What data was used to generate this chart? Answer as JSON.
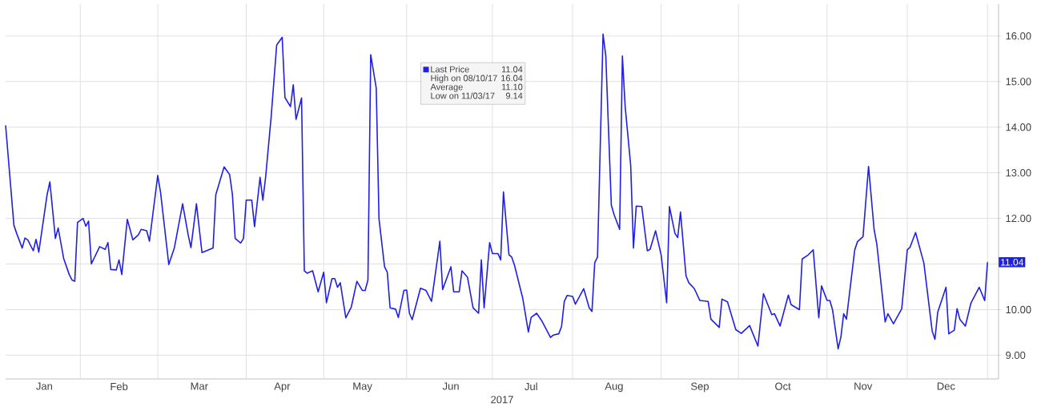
{
  "chart_data": {
    "type": "line",
    "xlabel": "2017",
    "series": [
      {
        "name": "Last Price",
        "color": "#1f1fe6",
        "x": [
          "2017-01-06",
          "2017-01-09",
          "2017-01-10",
          "2017-01-12",
          "2017-01-13",
          "2017-01-14",
          "2017-01-16",
          "2017-01-17",
          "2017-01-18",
          "2017-01-21",
          "2017-01-22",
          "2017-01-24",
          "2017-01-25",
          "2017-01-27",
          "2017-01-29",
          "2017-01-30",
          "2017-01-31",
          "2017-02-01",
          "2017-02-03",
          "2017-02-04",
          "2017-02-05",
          "2017-02-06",
          "2017-02-09",
          "2017-02-11",
          "2017-02-12",
          "2017-02-13",
          "2017-02-15",
          "2017-02-16",
          "2017-02-17",
          "2017-02-19",
          "2017-02-21",
          "2017-02-23",
          "2017-02-24",
          "2017-02-26",
          "2017-02-27",
          "2017-03-02",
          "2017-03-03",
          "2017-03-06",
          "2017-03-08",
          "2017-03-11",
          "2017-03-13",
          "2017-03-14",
          "2017-03-16",
          "2017-03-18",
          "2017-03-22",
          "2017-03-23",
          "2017-03-26",
          "2017-03-28",
          "2017-03-29",
          "2017-03-30",
          "2017-04-01",
          "2017-04-02",
          "2017-04-03",
          "2017-04-05",
          "2017-04-06",
          "2017-04-08",
          "2017-04-09",
          "2017-04-10",
          "2017-04-12",
          "2017-04-14",
          "2017-04-16",
          "2017-04-17",
          "2017-04-19",
          "2017-04-20",
          "2017-04-21",
          "2017-04-23",
          "2017-04-24",
          "2017-04-25",
          "2017-04-27",
          "2017-04-29",
          "2017-05-01",
          "2017-05-02",
          "2017-05-04",
          "2017-05-05",
          "2017-05-06",
          "2017-05-07",
          "2017-05-09",
          "2017-05-11",
          "2017-05-13",
          "2017-05-15",
          "2017-05-16",
          "2017-05-17",
          "2017-05-18",
          "2017-05-20",
          "2017-05-21",
          "2017-05-23",
          "2017-05-24",
          "2017-05-25",
          "2017-05-27",
          "2017-05-28",
          "2017-05-30",
          "2017-05-31",
          "2017-06-01",
          "2017-06-02",
          "2017-06-05",
          "2017-06-07",
          "2017-06-09",
          "2017-06-12",
          "2017-06-13",
          "2017-06-16",
          "2017-06-17",
          "2017-06-19",
          "2017-06-20",
          "2017-06-22",
          "2017-06-24",
          "2017-06-26",
          "2017-06-27",
          "2017-06-28",
          "2017-06-30",
          "2017-07-01",
          "2017-07-03",
          "2017-07-04",
          "2017-07-05",
          "2017-07-07",
          "2017-07-08",
          "2017-07-09",
          "2017-07-12",
          "2017-07-14",
          "2017-07-15",
          "2017-07-17",
          "2017-07-19",
          "2017-07-22",
          "2017-07-23",
          "2017-07-25",
          "2017-07-26",
          "2017-07-27",
          "2017-07-28",
          "2017-07-30",
          "2017-07-31",
          "2017-08-03",
          "2017-08-05",
          "2017-08-06",
          "2017-08-07",
          "2017-08-08",
          "2017-08-10",
          "2017-08-11",
          "2017-08-13",
          "2017-08-14",
          "2017-08-16",
          "2017-08-17",
          "2017-08-18",
          "2017-08-20",
          "2017-08-21",
          "2017-08-22",
          "2017-08-24",
          "2017-08-26",
          "2017-08-27",
          "2017-08-29",
          "2017-08-31",
          "2017-09-02",
          "2017-09-03",
          "2017-09-05",
          "2017-09-06",
          "2017-09-07",
          "2017-09-09",
          "2017-09-10",
          "2017-09-12",
          "2017-09-14",
          "2017-09-17",
          "2017-09-18",
          "2017-09-21",
          "2017-09-22",
          "2017-09-24",
          "2017-09-27",
          "2017-09-29",
          "2017-10-02",
          "2017-10-05",
          "2017-10-07",
          "2017-10-10",
          "2017-10-11",
          "2017-10-13",
          "2017-10-16",
          "2017-10-17",
          "2017-10-20",
          "2017-10-21",
          "2017-10-23",
          "2017-10-25",
          "2017-10-27",
          "2017-10-28",
          "2017-10-30",
          "2017-10-31",
          "2017-11-01",
          "2017-11-03",
          "2017-11-04",
          "2017-11-05",
          "2017-11-06",
          "2017-11-09",
          "2017-11-10",
          "2017-11-12",
          "2017-11-14",
          "2017-11-16",
          "2017-11-17",
          "2017-11-20",
          "2017-11-21",
          "2017-11-23",
          "2017-11-26",
          "2017-11-28",
          "2017-11-29",
          "2017-12-01",
          "2017-12-04",
          "2017-12-07",
          "2017-12-08",
          "2017-12-09",
          "2017-12-12",
          "2017-12-13",
          "2017-12-15",
          "2017-12-16",
          "2017-12-17",
          "2017-12-19",
          "2017-12-21",
          "2017-12-24",
          "2017-12-26",
          "2017-12-27"
        ],
        "values": [
          14.04,
          11.85,
          11.67,
          11.35,
          11.57,
          11.53,
          11.29,
          11.54,
          11.26,
          12.52,
          12.8,
          11.56,
          11.79,
          11.12,
          10.77,
          10.65,
          10.62,
          11.91,
          12.0,
          11.83,
          11.94,
          11.0,
          11.38,
          11.32,
          11.47,
          10.88,
          10.87,
          11.09,
          10.77,
          11.98,
          11.53,
          11.64,
          11.76,
          11.73,
          11.5,
          12.94,
          12.58,
          10.99,
          11.35,
          12.32,
          11.64,
          11.36,
          12.32,
          11.25,
          11.35,
          12.52,
          13.13,
          12.96,
          12.52,
          11.56,
          11.46,
          11.56,
          12.4,
          12.4,
          11.82,
          12.9,
          12.4,
          12.9,
          14.22,
          15.8,
          15.97,
          14.65,
          14.45,
          14.93,
          14.17,
          14.64,
          10.85,
          10.8,
          10.85,
          10.39,
          10.82,
          10.15,
          10.68,
          10.68,
          10.49,
          10.59,
          9.82,
          10.06,
          10.62,
          10.42,
          10.42,
          10.65,
          15.59,
          14.86,
          11.99,
          10.94,
          10.82,
          10.04,
          10.01,
          9.83,
          10.42,
          10.43,
          9.92,
          9.78,
          10.47,
          10.42,
          10.18,
          11.5,
          10.44,
          10.94,
          10.39,
          10.39,
          10.85,
          10.71,
          10.04,
          9.92,
          11.09,
          10.04,
          11.47,
          11.23,
          11.23,
          11.09,
          12.58,
          11.2,
          11.15,
          10.97,
          10.24,
          9.51,
          9.83,
          9.92,
          9.74,
          9.39,
          9.44,
          9.47,
          9.63,
          10.18,
          10.31,
          10.29,
          10.12,
          10.46,
          10.04,
          9.96,
          11.03,
          11.15,
          16.04,
          15.56,
          12.29,
          12.08,
          11.76,
          15.56,
          14.45,
          13.16,
          11.35,
          12.27,
          12.26,
          11.29,
          11.32,
          11.73,
          11.2,
          10.15,
          12.26,
          11.67,
          11.58,
          12.14,
          10.74,
          10.59,
          10.46,
          10.2,
          10.18,
          9.79,
          9.61,
          10.23,
          10.17,
          9.56,
          9.48,
          9.65,
          9.2,
          10.35,
          9.89,
          9.91,
          9.64,
          10.32,
          10.11,
          10.0,
          11.11,
          11.19,
          11.31,
          9.82,
          10.52,
          10.2,
          10.2,
          9.99,
          9.14,
          9.4,
          9.91,
          9.79,
          11.31,
          11.49,
          11.6,
          13.14,
          11.76,
          11.43,
          9.73,
          9.91,
          9.69,
          10.02,
          11.31,
          11.37,
          11.69,
          11.02,
          9.53,
          9.35,
          9.94,
          10.49,
          9.47,
          9.55,
          10.02,
          9.79,
          9.64,
          10.14,
          10.49,
          10.2,
          11.04
        ]
      }
    ],
    "xlim": [
      "2017-01-06",
      "2017-12-31"
    ],
    "xticks": [
      {
        "value": "2017-01-20",
        "label": "Jan"
      },
      {
        "value": "2017-02-16",
        "label": "Feb"
      },
      {
        "value": "2017-03-17",
        "label": "Mar"
      },
      {
        "value": "2017-04-16",
        "label": "Apr"
      },
      {
        "value": "2017-05-15",
        "label": "May"
      },
      {
        "value": "2017-06-16",
        "label": "Jun"
      },
      {
        "value": "2017-07-15",
        "label": "Jul"
      },
      {
        "value": "2017-08-14",
        "label": "Aug"
      },
      {
        "value": "2017-09-14",
        "label": "Sep"
      },
      {
        "value": "2017-10-14",
        "label": "Oct"
      },
      {
        "value": "2017-11-12",
        "label": "Nov"
      },
      {
        "value": "2017-12-12",
        "label": "Dec"
      },
      {
        "value": "2017-02-02",
        "label": null
      },
      {
        "value": "2017-03-02",
        "label": null
      },
      {
        "value": "2017-04-03",
        "label": null
      },
      {
        "value": "2017-05-01",
        "label": null
      },
      {
        "value": "2017-05-31",
        "label": null
      },
      {
        "value": "2017-07-01",
        "label": null
      },
      {
        "value": "2017-07-30",
        "label": null
      },
      {
        "value": "2017-08-31",
        "label": null
      },
      {
        "value": "2017-09-28",
        "label": null
      },
      {
        "value": "2017-10-30",
        "label": null
      },
      {
        "value": "2017-11-28",
        "label": null
      },
      {
        "value": "2017-12-27",
        "label": null
      }
    ],
    "ylim": [
      8.48,
      16.7
    ],
    "yticks": [
      {
        "value": 9,
        "label": "9.00"
      },
      {
        "value": 10,
        "label": "10.00"
      },
      {
        "value": 11,
        "label": null
      },
      {
        "value": 12,
        "label": "12.00"
      },
      {
        "value": 13,
        "label": "13.00"
      },
      {
        "value": 14,
        "label": "14.00"
      },
      {
        "value": 15,
        "label": "15.00"
      },
      {
        "value": 16,
        "label": "16.00"
      }
    ],
    "grid": true,
    "legend": "top",
    "marker": "none",
    "line_style": "solid",
    "annotations": [
      "11.04",
      "High on 08/10/17",
      "16.04",
      "Average",
      "11.10",
      "Low on 11/03/17",
      "9.14",
      {
        "text": "11.04",
        "x": "2017-12-27",
        "y": 11.04
      }
    ]
  }
}
